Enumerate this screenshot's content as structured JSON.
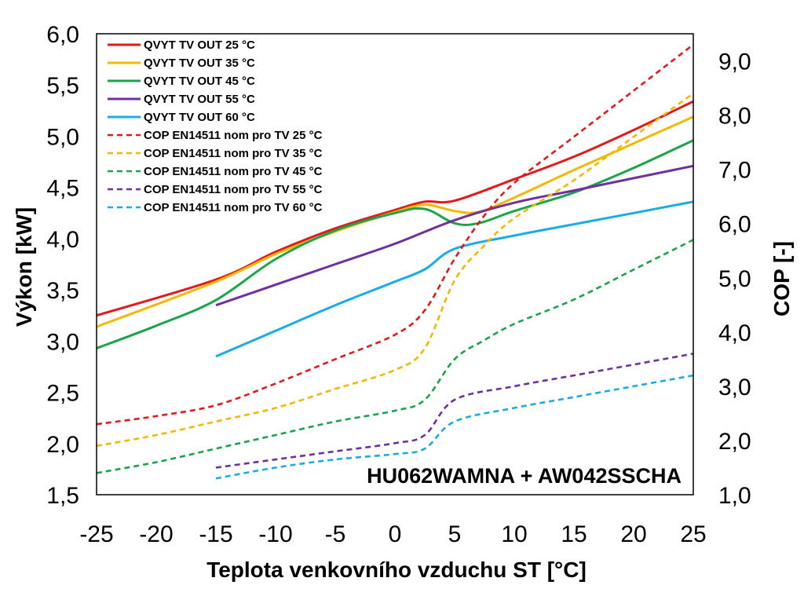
{
  "chart_data": {
    "type": "line",
    "title": "",
    "annotation": "HU062WAMNA + AW042SSCHA",
    "xlabel": "Teplota venkovního vzduchu ST [°C]",
    "ylabel": "Výkon [kW]",
    "y2label": "COP [-]",
    "xlim": [
      -25,
      25
    ],
    "ylim": [
      1.5,
      6.0
    ],
    "y2lim": [
      1.0,
      9.5
    ],
    "xticks": [
      "-25",
      "-20",
      "-15",
      "-10",
      "-5",
      "0",
      "5",
      "10",
      "15",
      "20",
      "25"
    ],
    "yticks": [
      "1,5",
      "2,0",
      "2,5",
      "3,0",
      "3,5",
      "4,0",
      "4,5",
      "5,0",
      "5,5",
      "6,0"
    ],
    "y2ticks": [
      "1,0",
      "2,0",
      "3,0",
      "4,0",
      "5,0",
      "6,0",
      "7,0",
      "8,0",
      "9,0"
    ],
    "grid": false,
    "legend_position": "top-left",
    "series": [
      {
        "name": "QVYT TV OUT 25 °C",
        "axis": "left",
        "style": "solid",
        "color": "#e31a1c",
        "x": [
          -25,
          -15,
          -10,
          -5,
          0,
          2.5,
          5,
          10,
          15,
          20,
          25
        ],
        "y": [
          3.25,
          3.6,
          3.87,
          4.1,
          4.28,
          4.36,
          4.37,
          4.58,
          4.8,
          5.06,
          5.34
        ]
      },
      {
        "name": "QVYT TV OUT 35 °C",
        "axis": "left",
        "style": "solid",
        "color": "#f5b800",
        "x": [
          -25,
          -15,
          -10,
          -5,
          0,
          2.5,
          5,
          7,
          10,
          15,
          20,
          25
        ],
        "y": [
          3.14,
          3.58,
          3.85,
          4.07,
          4.26,
          4.33,
          4.27,
          4.26,
          4.4,
          4.67,
          4.93,
          5.19
        ]
      },
      {
        "name": "QVYT TV OUT 45 °C",
        "axis": "left",
        "style": "solid",
        "color": "#1aa54a",
        "x": [
          -25,
          -20,
          -15,
          -10,
          -5,
          0,
          2.5,
          5,
          7,
          10,
          15,
          20,
          25
        ],
        "y": [
          2.93,
          3.15,
          3.4,
          3.8,
          4.08,
          4.25,
          4.29,
          4.15,
          4.15,
          4.27,
          4.45,
          4.69,
          4.96
        ]
      },
      {
        "name": "QVYT TV OUT 55 °C",
        "axis": "left",
        "style": "solid",
        "color": "#7030a0",
        "x": [
          -15,
          -10,
          -5,
          0,
          5,
          10,
          15,
          20,
          25
        ],
        "y": [
          3.35,
          3.55,
          3.75,
          3.95,
          4.18,
          4.35,
          4.47,
          4.59,
          4.71
        ]
      },
      {
        "name": "QVYT TV OUT 60 °C",
        "axis": "left",
        "style": "solid",
        "color": "#1aace8",
        "x": [
          -15,
          -10,
          -5,
          0,
          2.5,
          5,
          10,
          15,
          20,
          25
        ],
        "y": [
          2.85,
          3.1,
          3.35,
          3.58,
          3.7,
          3.9,
          4.03,
          4.14,
          4.25,
          4.36
        ]
      },
      {
        "name": "COP EN14511 nom pro TV 25 °C",
        "axis": "right",
        "style": "dashed",
        "color": "#e31a1c",
        "x": [
          -25,
          -20,
          -15,
          -10,
          -5,
          0,
          2.5,
          5,
          7.5,
          10,
          15,
          20,
          25
        ],
        "y": [
          2.3,
          2.45,
          2.65,
          3.05,
          3.5,
          3.95,
          4.4,
          5.35,
          6.15,
          6.75,
          7.6,
          8.45,
          9.3
        ]
      },
      {
        "name": "COP EN14511 nom pro TV 35 °C",
        "axis": "right",
        "style": "dashed",
        "color": "#f5b800",
        "x": [
          -25,
          -20,
          -15,
          -10,
          -5,
          0,
          2.5,
          5,
          7.5,
          10,
          15,
          20,
          25
        ],
        "y": [
          1.9,
          2.1,
          2.35,
          2.6,
          2.95,
          3.3,
          3.7,
          4.95,
          5.6,
          6.1,
          6.8,
          7.6,
          8.4
        ]
      },
      {
        "name": "COP EN14511 nom pro TV 45 °C",
        "axis": "right",
        "style": "dashed",
        "color": "#1aa54a",
        "x": [
          -25,
          -20,
          -15,
          -10,
          -5,
          0,
          2.5,
          5,
          7.5,
          10,
          15,
          20,
          25
        ],
        "y": [
          1.4,
          1.6,
          1.85,
          2.1,
          2.35,
          2.55,
          2.75,
          3.5,
          3.85,
          4.15,
          4.6,
          5.15,
          5.7
        ]
      },
      {
        "name": "COP EN14511 nom pro TV 55 °C",
        "axis": "right",
        "style": "dashed",
        "color": "#7030a0",
        "x": [
          -15,
          -10,
          -5,
          0,
          2.5,
          5,
          10,
          15,
          20,
          25
        ],
        "y": [
          1.5,
          1.65,
          1.8,
          1.95,
          2.1,
          2.75,
          3.0,
          3.2,
          3.4,
          3.6
        ]
      },
      {
        "name": "COP EN14511 nom pro TV 60 °C",
        "axis": "right",
        "style": "dashed",
        "color": "#1aace8",
        "x": [
          -15,
          -10,
          -5,
          0,
          2.5,
          5,
          10,
          15,
          20,
          25
        ],
        "y": [
          1.3,
          1.5,
          1.65,
          1.75,
          1.85,
          2.35,
          2.6,
          2.8,
          3.0,
          3.2
        ]
      }
    ]
  }
}
